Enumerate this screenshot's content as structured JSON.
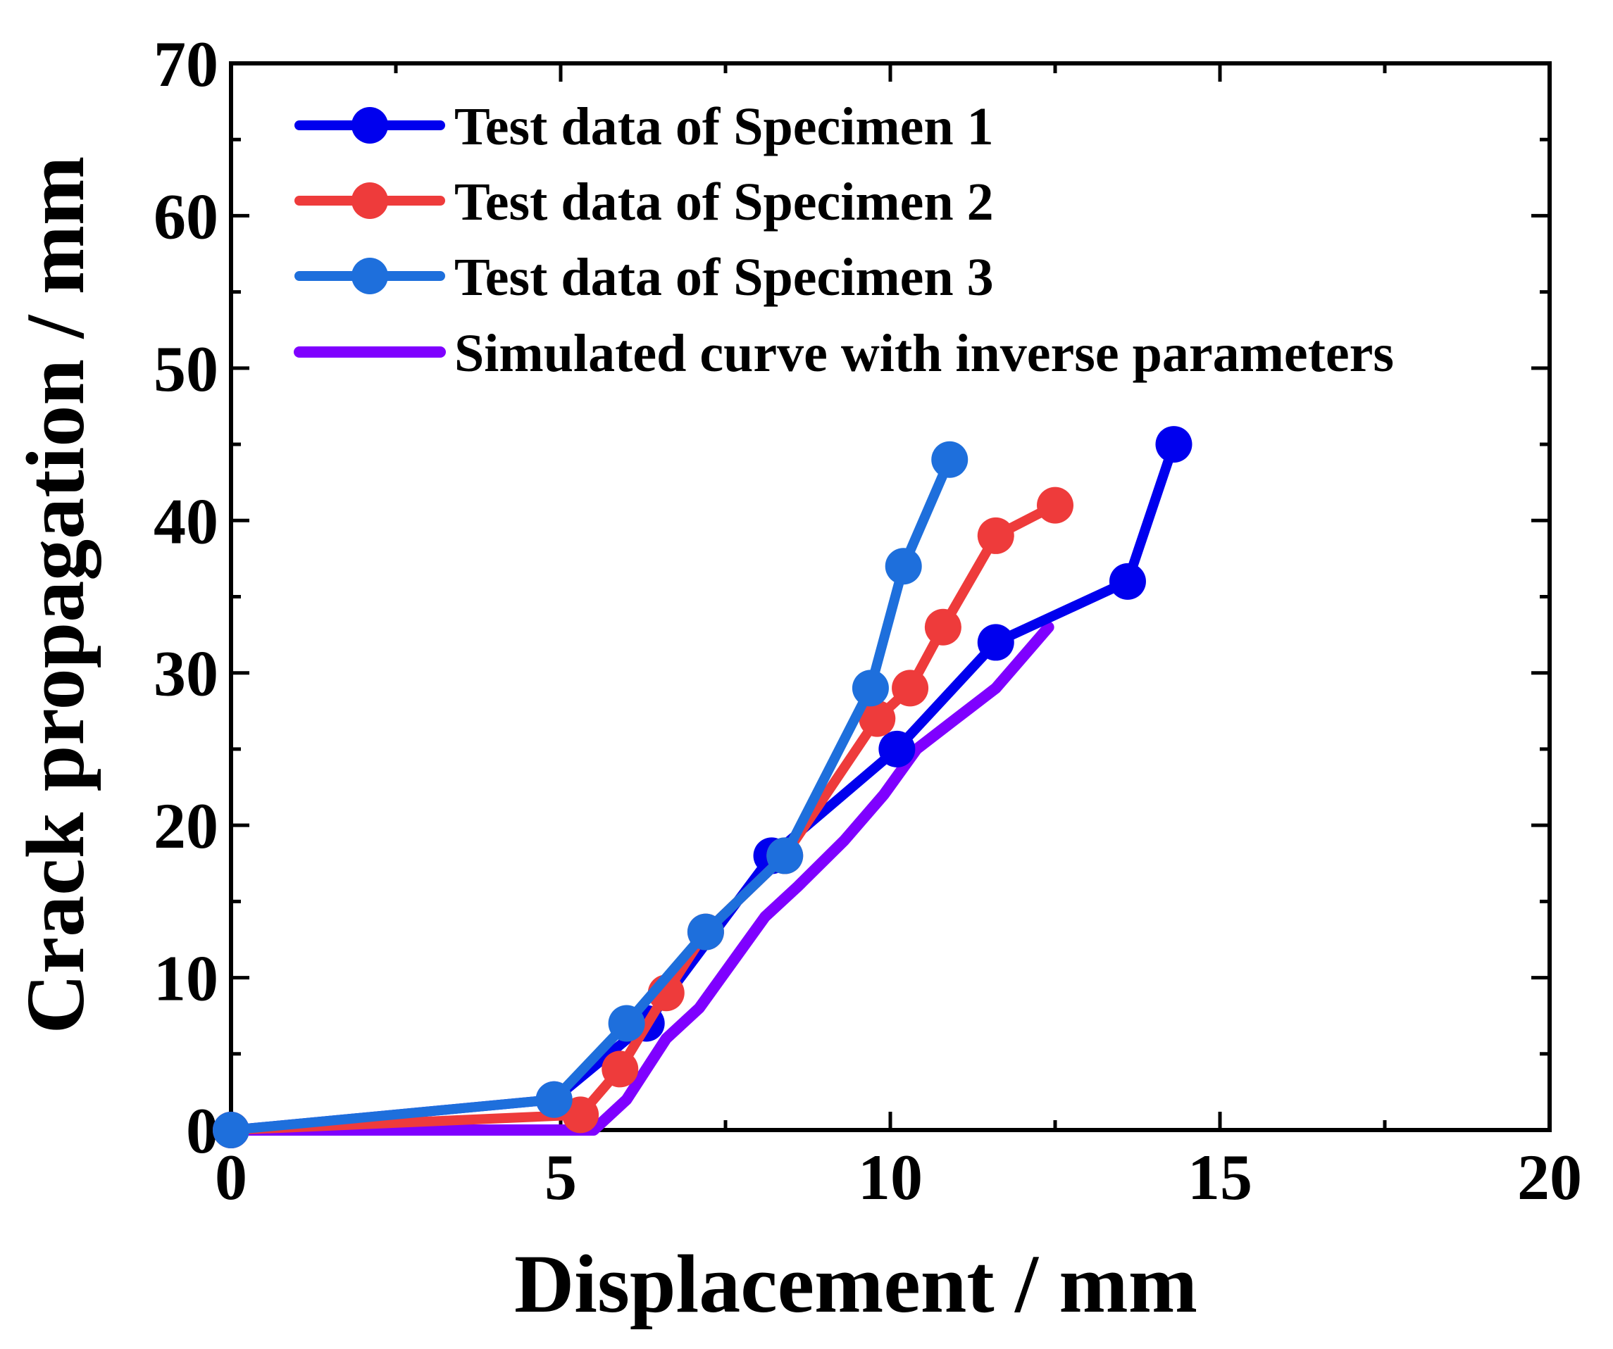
{
  "chart_data": {
    "type": "line",
    "title": "",
    "xlabel": "Displacement / mm",
    "ylabel": "Crack propagation / mm",
    "xlim": [
      0,
      20
    ],
    "ylim": [
      0,
      70
    ],
    "x_ticks": [
      0,
      5,
      10,
      15,
      20
    ],
    "y_ticks": [
      0,
      10,
      20,
      30,
      40,
      50,
      60,
      70
    ],
    "x_tick_labels": [
      "0",
      "5",
      "10",
      "15",
      "20"
    ],
    "y_tick_labels": [
      "0",
      "10",
      "20",
      "30",
      "40",
      "50",
      "60",
      "70"
    ],
    "grid": false,
    "legend_position": "top-left",
    "series": [
      {
        "name": "Test data of Specimen 1",
        "color": "#0000ee",
        "markers": true,
        "x": [
          0.0,
          4.9,
          6.3,
          8.2,
          10.1,
          11.6,
          13.6,
          14.3
        ],
        "y": [
          0,
          2,
          7,
          18,
          25,
          32,
          36,
          45
        ]
      },
      {
        "name": "Test data of Specimen 2",
        "color": "#ee3b3b",
        "markers": true,
        "x": [
          0.0,
          5.3,
          5.9,
          6.6,
          7.2,
          8.4,
          9.8,
          10.3,
          10.8,
          11.6,
          12.5
        ],
        "y": [
          0,
          1,
          4,
          9,
          13,
          18,
          27,
          29,
          33,
          39,
          41
        ]
      },
      {
        "name": "Test data of Specimen 3",
        "color": "#1e6fdc",
        "markers": true,
        "x": [
          0.0,
          4.9,
          6.0,
          7.2,
          8.4,
          9.7,
          10.2,
          10.9
        ],
        "y": [
          0,
          2,
          7,
          13,
          18,
          29,
          37,
          44
        ]
      },
      {
        "name": "Simulated curve with inverse parameters",
        "color": "#7f00ff",
        "markers": false,
        "x": [
          0.0,
          5.5,
          6.0,
          6.3,
          6.6,
          7.1,
          7.6,
          8.1,
          8.6,
          9.3,
          9.9,
          10.4,
          11.0,
          11.6,
          12.0,
          12.4
        ],
        "y": [
          0,
          0,
          2,
          4,
          6,
          8,
          11,
          14,
          16,
          19,
          22,
          25,
          27,
          29,
          31,
          33
        ]
      }
    ]
  }
}
